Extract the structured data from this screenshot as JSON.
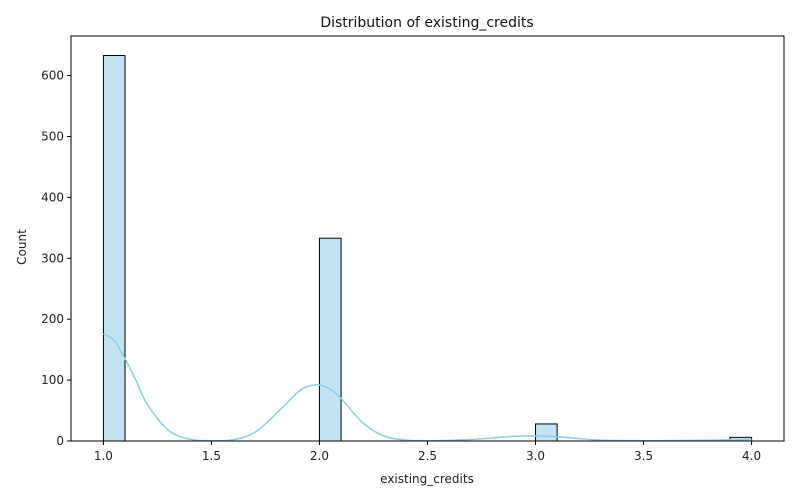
{
  "chart_data": {
    "type": "bar",
    "title": "Distribution of existing_credits",
    "xlabel": "existing_credits",
    "ylabel": "Count",
    "xlim": [
      0.85,
      4.15
    ],
    "ylim": [
      0,
      665
    ],
    "xticks": [
      1.0,
      1.5,
      2.0,
      2.5,
      3.0,
      3.5,
      4.0
    ],
    "xtick_labels": [
      "1.0",
      "1.5",
      "2.0",
      "2.5",
      "3.0",
      "3.5",
      "4.0"
    ],
    "yticks": [
      0,
      100,
      200,
      300,
      400,
      500,
      600
    ],
    "ytick_labels": [
      "0",
      "100",
      "200",
      "300",
      "400",
      "500",
      "600"
    ],
    "bins": [
      {
        "x0": 1.0,
        "x1": 1.1,
        "count": 633
      },
      {
        "x0": 2.0,
        "x1": 2.1,
        "count": 333
      },
      {
        "x0": 3.0,
        "x1": 3.1,
        "count": 28
      },
      {
        "x0": 3.9,
        "x1": 4.0,
        "count": 6
      }
    ],
    "kde": {
      "x": [
        1.0,
        1.05,
        1.1,
        1.15,
        1.2,
        1.3,
        1.4,
        1.5,
        1.6,
        1.7,
        1.8,
        1.9,
        1.95,
        2.0,
        2.05,
        2.1,
        2.2,
        2.3,
        2.4,
        2.5,
        2.6,
        2.7,
        2.8,
        2.9,
        3.0,
        3.1,
        3.2,
        3.3,
        3.5,
        3.7,
        3.9,
        4.0
      ],
      "y": [
        176,
        165,
        135,
        100,
        62,
        18,
        3,
        0.5,
        2,
        14,
        45,
        80,
        90,
        92,
        85,
        70,
        30,
        8,
        1.5,
        0.5,
        1,
        2.5,
        5,
        7.5,
        8.5,
        7,
        4,
        1.5,
        0.5,
        1,
        1.8,
        2
      ]
    },
    "colors": {
      "bar_fill": "#c3e3f2",
      "bar_edge": "#000000",
      "kde_line": "#87ceeb"
    },
    "grid": false,
    "legend": "none"
  }
}
